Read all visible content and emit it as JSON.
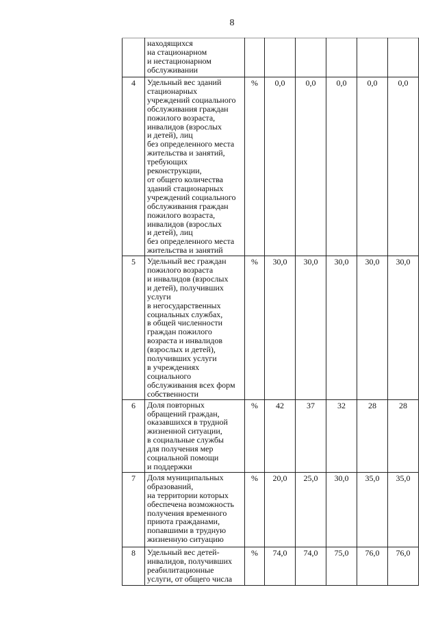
{
  "page_number": "8",
  "rows": [
    {
      "num": "",
      "text": "находящихся\nна стационарном\nи нестационарном\nобслуживании",
      "unit": "",
      "values": [
        "",
        "",
        "",
        "",
        ""
      ]
    },
    {
      "num": "4",
      "text": "Удельный вес зданий\nстационарных\nучреждений социального\nобслуживания граждан\nпожилого возраста,\nинвалидов (взрослых\nи детей), лиц\nбез определенного места\nжительства и занятий,\nтребующих\nреконструкции,\nот общего количества\nзданий стационарных\nучреждений социального\nобслуживания граждан\nпожилого возраста,\nинвалидов (взрослых\nи детей), лиц\nбез определенного места\nжительства и занятий",
      "unit": "%",
      "values": [
        "0,0",
        "0,0",
        "0,0",
        "0,0",
        "0,0"
      ]
    },
    {
      "num": "5",
      "text": "Удельный вес граждан\nпожилого возраста\nи инвалидов (взрослых\nи детей), получивших\nуслуги\nв негосударственных\nсоциальных службах,\nв общей численности\nграждан пожилого\nвозраста и инвалидов\n(взрослых и детей),\nполучивших услуги\nв учреждениях\nсоциального\nобслуживания всех форм\nсобственности",
      "unit": "%",
      "values": [
        "30,0",
        "30,0",
        "30,0",
        "30,0",
        "30,0"
      ]
    },
    {
      "num": "6",
      "text": "Доля повторных\nобращений граждан,\nоказавшихся в трудной\nжизненной ситуации,\nв социальные службы\nдля получения мер\nсоциальной помощи\nи поддержки",
      "unit": "%",
      "values": [
        "42",
        "37",
        "32",
        "28",
        "28"
      ]
    },
    {
      "num": "7",
      "text": "Доля муниципальных\nобразований,\nна территории которых\nобеспечена возможность\nполучения временного\nприюта гражданами,\nпопавшими в трудную\nжизненную ситуацию",
      "unit": "%",
      "values": [
        "20,0",
        "25,0",
        "30,0",
        "35,0",
        "35,0"
      ]
    },
    {
      "num": "8",
      "text": "Удельный вес детей-\nинвалидов, получивших\nреабилитационные\nуслуги, от общего числа",
      "unit": "%",
      "values": [
        "74,0",
        "74,0",
        "75,0",
        "76,0",
        "76,0"
      ]
    }
  ]
}
